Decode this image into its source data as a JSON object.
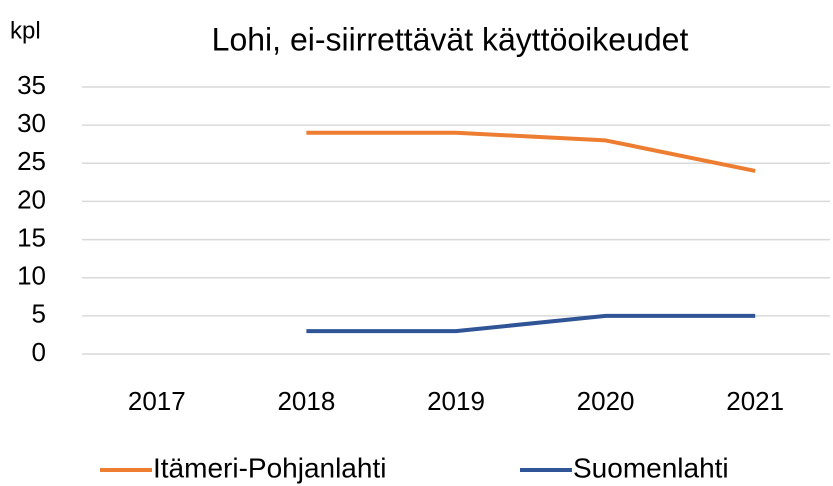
{
  "chart_data": {
    "type": "line",
    "title": "Lohi, ei-siirrettävät käyttöoikeudet",
    "y_label": "kpl",
    "categories": [
      "2017",
      "2018",
      "2019",
      "2020",
      "2021"
    ],
    "series": [
      {
        "name": "Itämeri-Pohjanlahti",
        "color": "#ed7d31",
        "values": [
          null,
          29,
          29,
          28,
          24
        ]
      },
      {
        "name": "Suomenlahti",
        "color": "#2f5597",
        "values": [
          null,
          3,
          3,
          5,
          5
        ]
      }
    ],
    "ylim": [
      0,
      35
    ],
    "yticks": [
      0,
      5,
      10,
      15,
      20,
      25,
      30,
      35
    ],
    "grid": true,
    "legend": "bottom"
  }
}
